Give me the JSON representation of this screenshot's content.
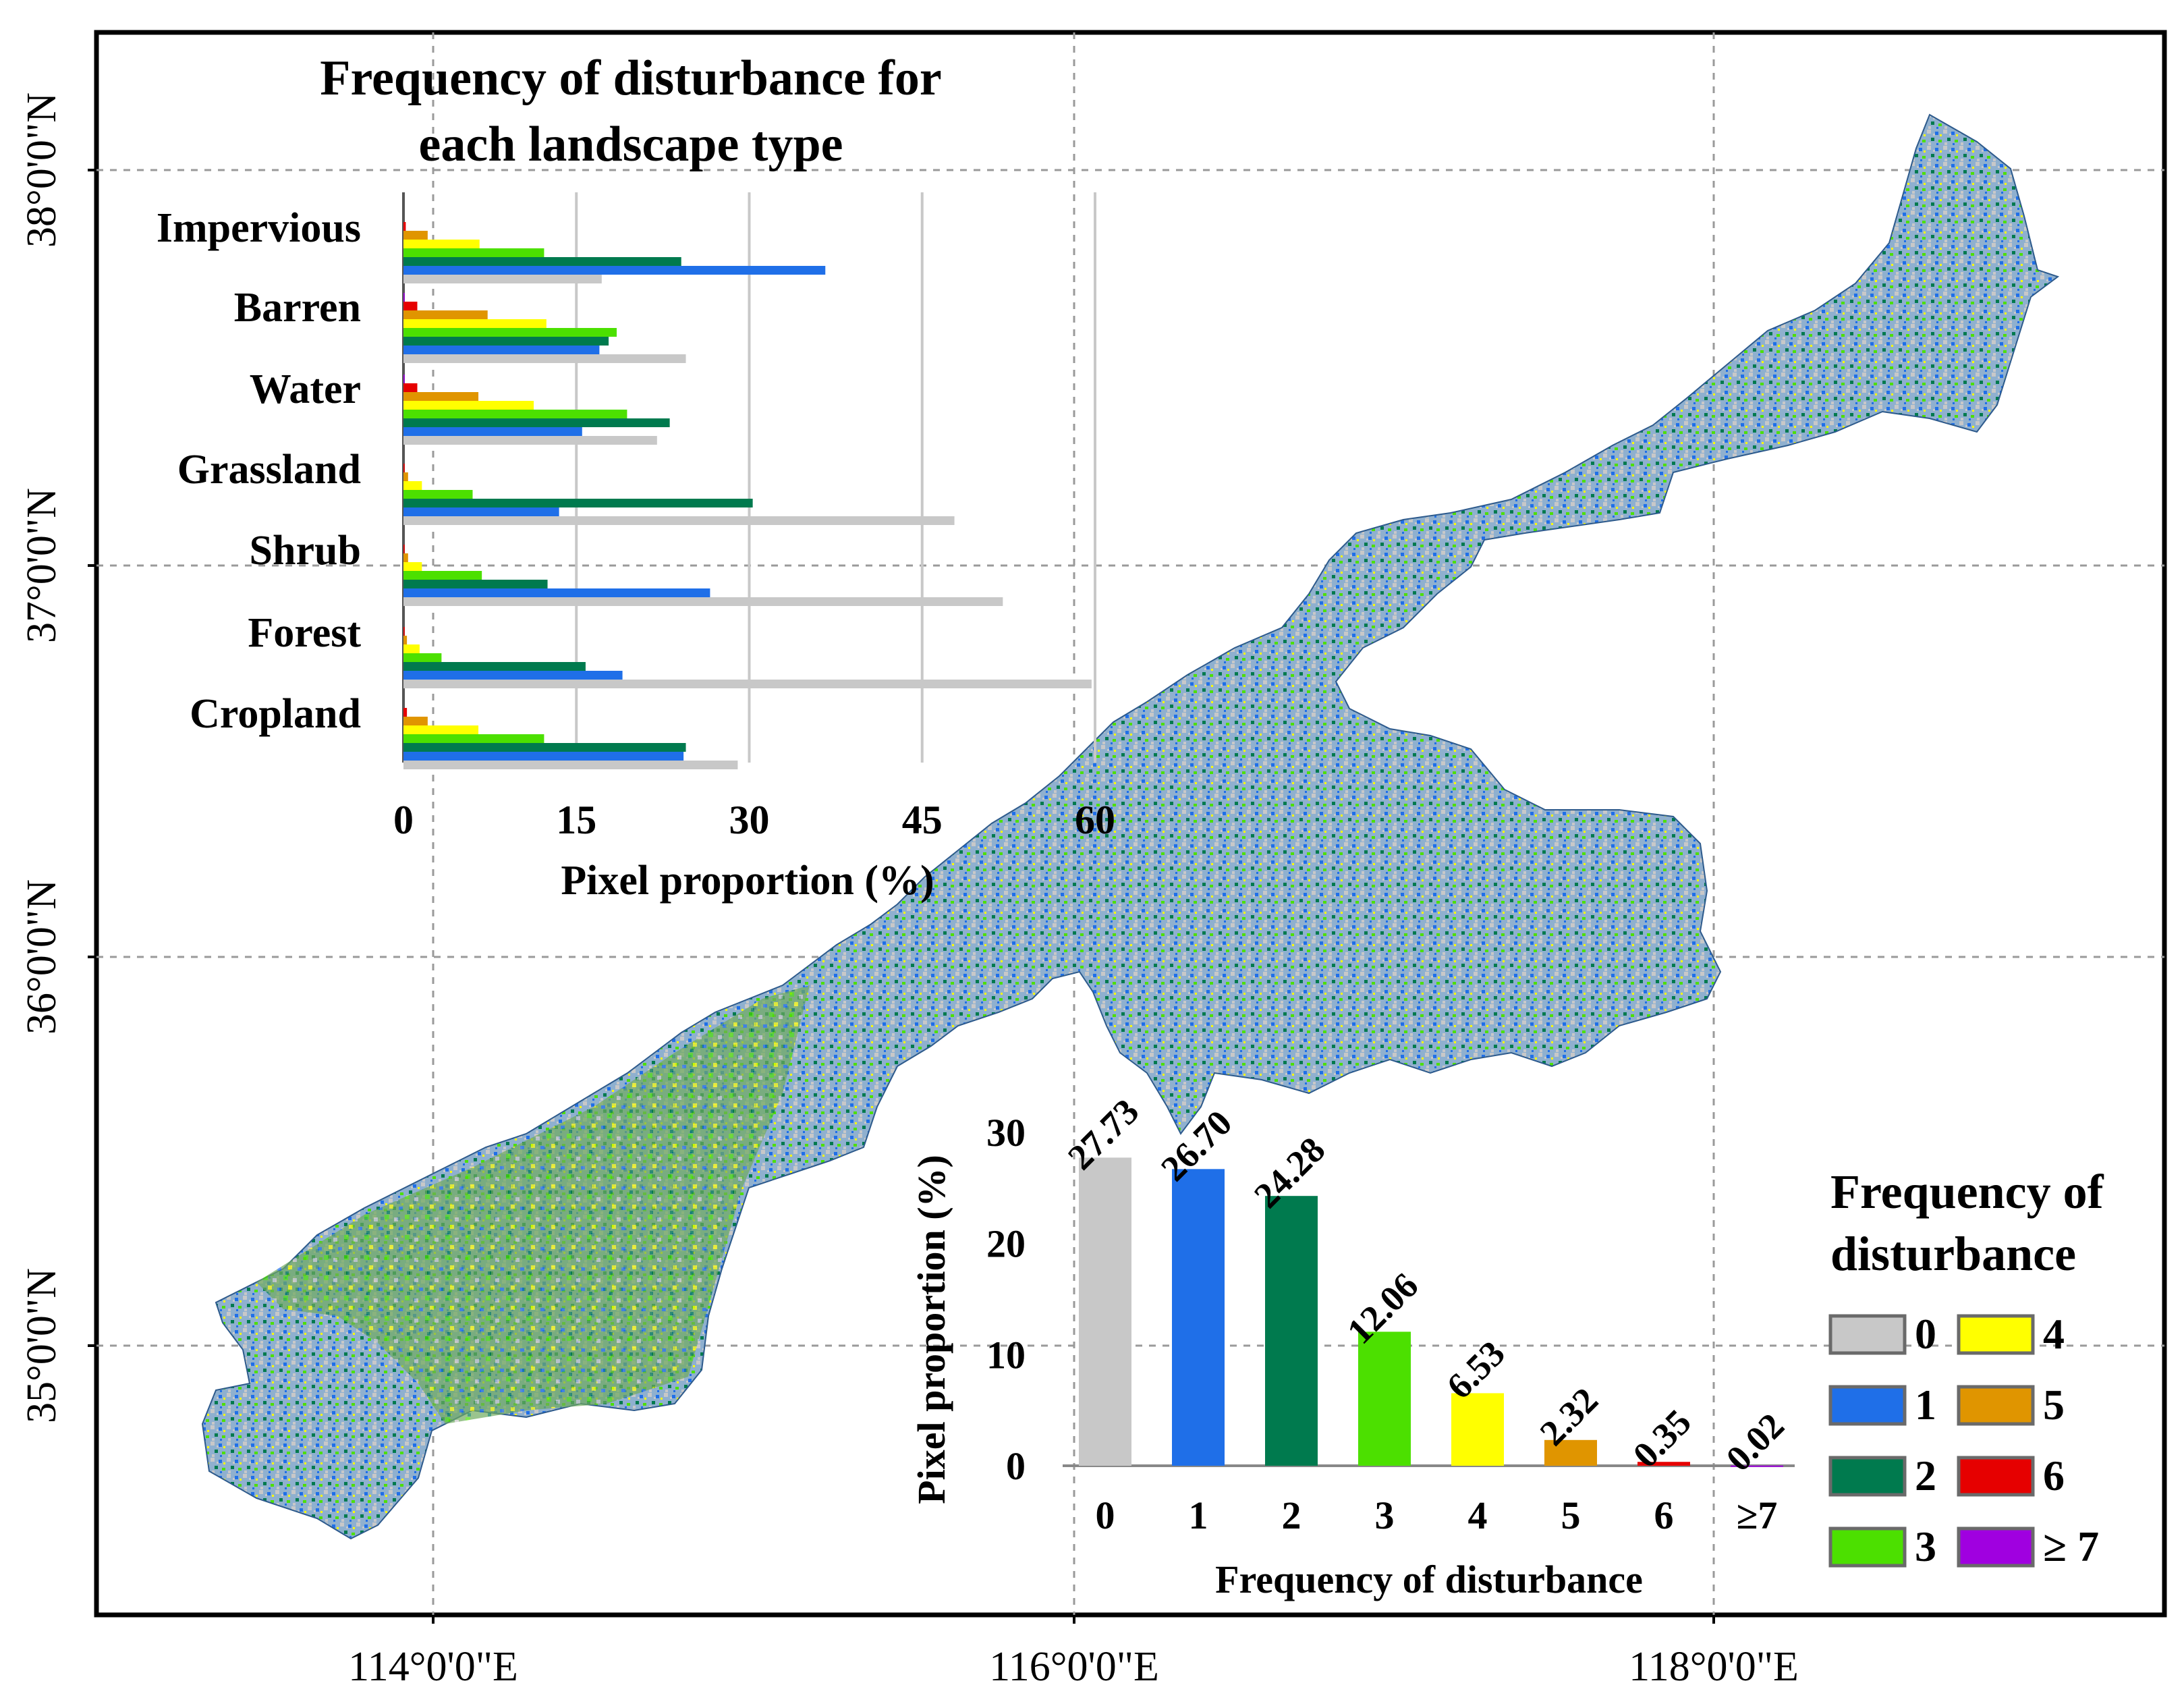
{
  "map": {
    "lat_labels": [
      "38°0'0\"N",
      "37°0'0\"N",
      "36°0'0\"N",
      "35°0'0\"N"
    ],
    "lon_labels": [
      "114°0'0\"E",
      "116°0'0\"E",
      "118°0'0\"E"
    ]
  },
  "legend": {
    "title_line1": "Frequency of",
    "title_line2": "disturbance",
    "items": [
      {
        "label": "0",
        "color": "#c8c8c8"
      },
      {
        "label": "1",
        "color": "#1f6fe8"
      },
      {
        "label": "2",
        "color": "#007a4e"
      },
      {
        "label": "3",
        "color": "#4ce000"
      },
      {
        "label": "4",
        "color": "#ffff00"
      },
      {
        "label": "5",
        "color": "#e09500"
      },
      {
        "label": "6",
        "color": "#e60000"
      },
      {
        "label": "≥ 7",
        "color": "#a000e0"
      }
    ]
  },
  "chart_data": [
    {
      "type": "bar",
      "orientation": "horizontal",
      "title_line1": "Frequency of disturbance for",
      "title_line2": "each landscape type",
      "xlabel": "Pixel proportion (%)",
      "xlim": [
        0,
        60
      ],
      "xticks": [
        "0",
        "15",
        "30",
        "45",
        "60"
      ],
      "categories": [
        "Impervious",
        "Barren",
        "Water",
        "Grassland",
        "Shrub",
        "Forest",
        "Cropland"
      ],
      "series": [
        {
          "name": "0",
          "color": "#c8c8c8",
          "values": [
            17.2,
            24.5,
            22.0,
            47.8,
            52.0,
            59.7,
            29.0
          ]
        },
        {
          "name": "1",
          "color": "#1f6fe8",
          "values": [
            36.6,
            17.0,
            15.5,
            13.5,
            26.6,
            19.0,
            24.3
          ]
        },
        {
          "name": "2",
          "color": "#007a4e",
          "values": [
            24.1,
            17.8,
            23.1,
            30.3,
            12.5,
            15.8,
            24.5
          ]
        },
        {
          "name": "3",
          "color": "#4ce000",
          "values": [
            12.2,
            18.5,
            19.4,
            6.0,
            6.8,
            3.3,
            12.2
          ]
        },
        {
          "name": "4",
          "color": "#ffff00",
          "values": [
            6.6,
            12.4,
            11.3,
            1.6,
            1.6,
            1.4,
            6.5
          ]
        },
        {
          "name": "5",
          "color": "#e09500",
          "values": [
            2.1,
            7.3,
            6.5,
            0.4,
            0.4,
            0.3,
            2.1
          ]
        },
        {
          "name": "6",
          "color": "#e60000",
          "values": [
            0.2,
            1.2,
            1.2,
            0.1,
            0.1,
            0.1,
            0.3
          ]
        },
        {
          "name": "≥7",
          "color": "#a000e0",
          "values": [
            0.0,
            0.1,
            0.1,
            0.0,
            0.0,
            0.0,
            0.0
          ]
        }
      ]
    },
    {
      "type": "bar",
      "orientation": "vertical",
      "xlabel": "Frequency of disturbance",
      "ylabel": "Pixel proportion (%)",
      "ylim": [
        0,
        30
      ],
      "yticks": [
        "0",
        "10",
        "20",
        "30"
      ],
      "categories": [
        "0",
        "1",
        "2",
        "3",
        "4",
        "5",
        "6",
        "≥7"
      ],
      "values": [
        27.73,
        26.7,
        24.28,
        12.06,
        6.53,
        2.32,
        0.35,
        0.02
      ],
      "value_labels": [
        "27.73",
        "26.70",
        "24.28",
        "12.06",
        "6.53",
        "2.32",
        "0.35",
        "0.02"
      ],
      "colors": [
        "#c8c8c8",
        "#1f6fe8",
        "#007a4e",
        "#4ce000",
        "#ffff00",
        "#e09500",
        "#e60000",
        "#a000e0"
      ]
    }
  ]
}
